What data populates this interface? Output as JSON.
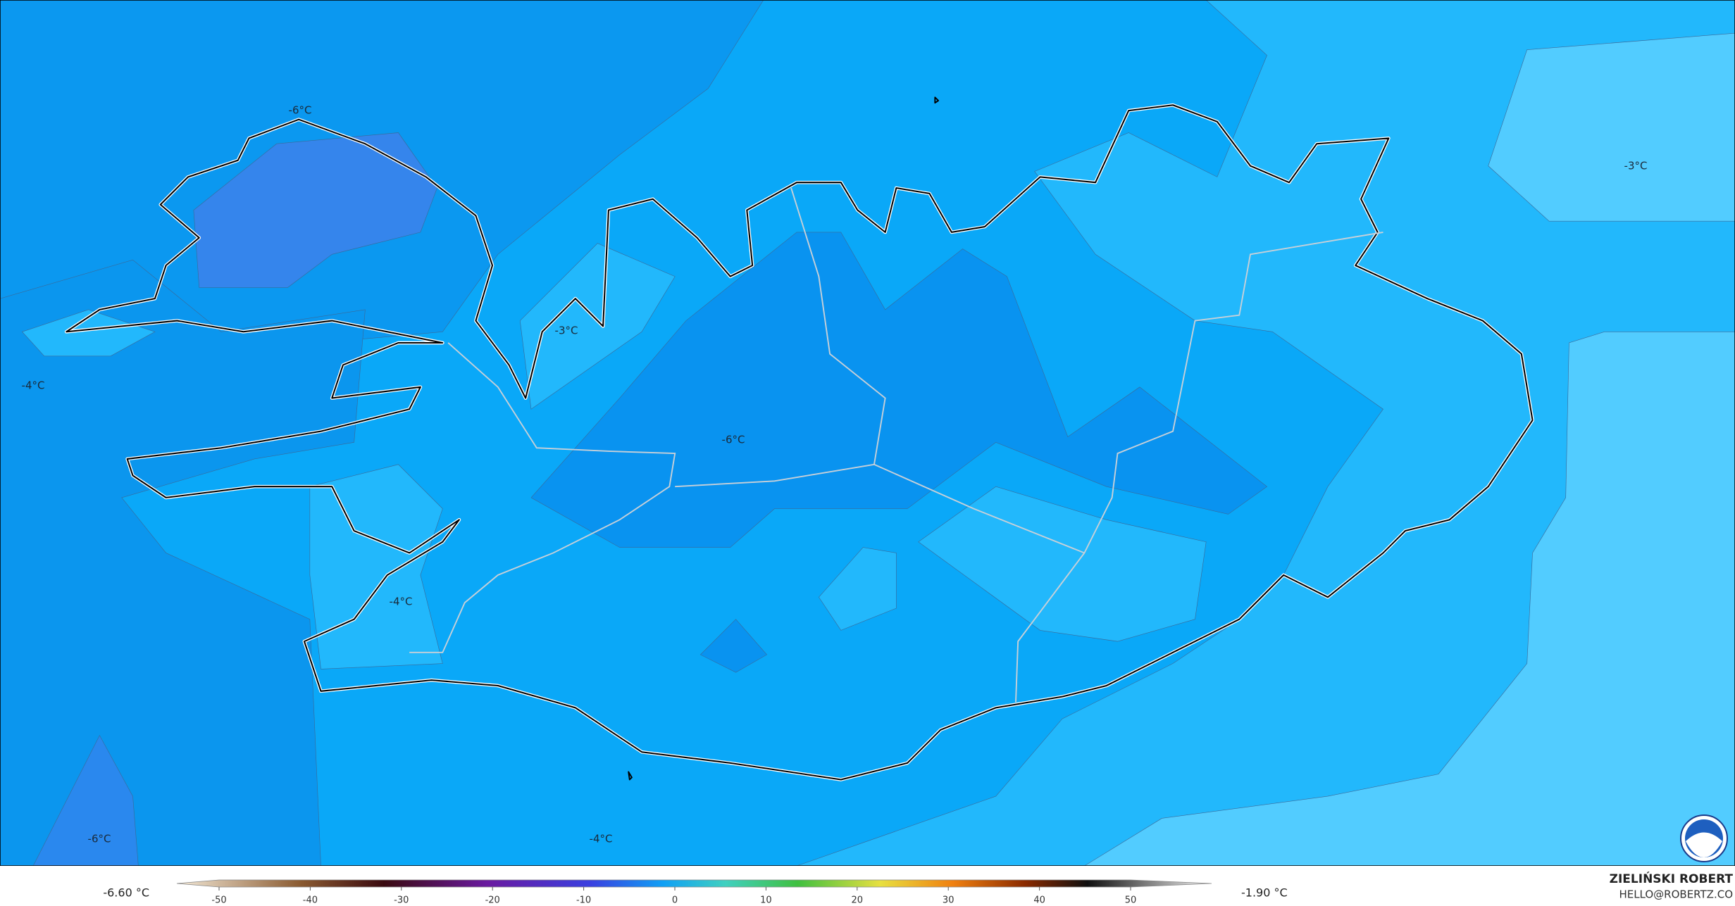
{
  "map": {
    "contour_labels": [
      "-6°C",
      "-3°C",
      "-4°C",
      "-6°C",
      "-4°C",
      "-6°C",
      "-4°C",
      "-3°C"
    ],
    "legend": {
      "min_label": "-6.60 °C",
      "max_label": "-1.90 °C",
      "ticks": [
        -50,
        -40,
        -30,
        -20,
        -10,
        0,
        10,
        20,
        30,
        40,
        50
      ]
    },
    "credit": {
      "name": "ZIELIŃSKI ROBERT",
      "email": "HELLO@ROBERTZ.CO"
    }
  }
}
